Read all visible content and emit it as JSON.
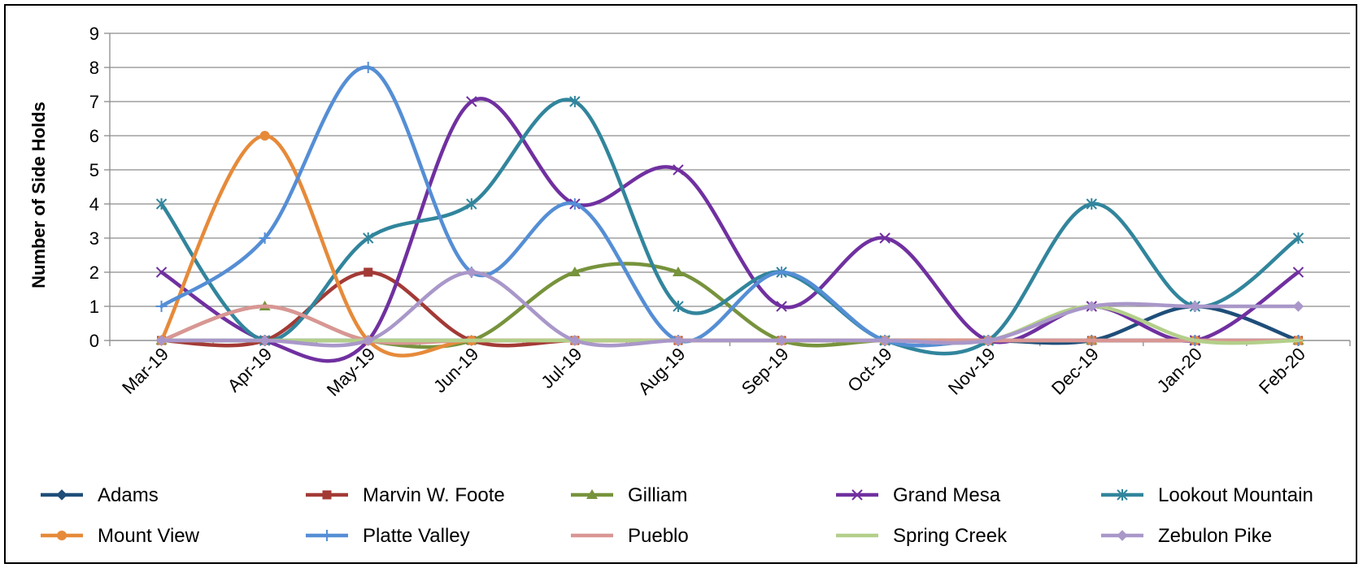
{
  "chart_data": {
    "type": "line",
    "title": "",
    "xlabel": "",
    "ylabel": "Number of Side Holds",
    "ylim": [
      0,
      9
    ],
    "ytick_step": 1,
    "grid": true,
    "legend_placement": "bottom",
    "smooth": true,
    "categories": [
      "Mar-19",
      "Apr-19",
      "May-19",
      "Jun-19",
      "Jul-19",
      "Aug-19",
      "Sep-19",
      "Oct-19",
      "Nov-19",
      "Dec-19",
      "Jan-20",
      "Feb-20"
    ],
    "series": [
      {
        "name": "Adams",
        "color": "#1F4E79",
        "marker": "diamond",
        "values": [
          0,
          0,
          0,
          0,
          0,
          0,
          0,
          0,
          0,
          0,
          1,
          0
        ]
      },
      {
        "name": "Marvin W. Foote",
        "color": "#A33A36",
        "marker": "square",
        "values": [
          0,
          0,
          2,
          0,
          0,
          0,
          0,
          0,
          0,
          0,
          0,
          0
        ]
      },
      {
        "name": "Gilliam",
        "color": "#77933C",
        "marker": "triangle",
        "values": [
          0,
          1,
          0,
          0,
          2,
          2,
          0,
          0,
          0,
          0,
          0,
          0
        ]
      },
      {
        "name": "Grand Mesa",
        "color": "#7030A0",
        "marker": "x",
        "values": [
          2,
          0,
          0,
          7,
          4,
          5,
          1,
          3,
          0,
          1,
          0,
          2
        ]
      },
      {
        "name": "Lookout Mountain",
        "color": "#31859C",
        "marker": "asterisk",
        "values": [
          4,
          0,
          3,
          4,
          7,
          1,
          2,
          0,
          0,
          4,
          1,
          3
        ]
      },
      {
        "name": "Mount View",
        "color": "#E68A3A",
        "marker": "circle",
        "values": [
          0,
          6,
          0,
          0,
          0,
          0,
          0,
          0,
          0,
          0,
          0,
          0
        ]
      },
      {
        "name": "Platte Valley",
        "color": "#558ED5",
        "marker": "plus",
        "values": [
          1,
          3,
          8,
          2,
          4,
          0,
          2,
          0,
          0,
          0,
          0,
          0
        ]
      },
      {
        "name": "Pueblo",
        "color": "#D99694",
        "marker": "dash",
        "values": [
          0,
          1,
          0,
          0,
          0,
          0,
          0,
          0,
          0,
          0,
          0,
          0
        ]
      },
      {
        "name": "Spring Creek",
        "color": "#B3CF8A",
        "marker": "dash",
        "values": [
          0,
          0,
          0,
          0,
          0,
          0,
          0,
          0,
          0,
          1,
          0,
          0
        ]
      },
      {
        "name": "Zebulon Pike",
        "color": "#A997C9",
        "marker": "diamond",
        "values": [
          0,
          0,
          0,
          2,
          0,
          0,
          0,
          0,
          0,
          1,
          1,
          1
        ]
      }
    ]
  }
}
